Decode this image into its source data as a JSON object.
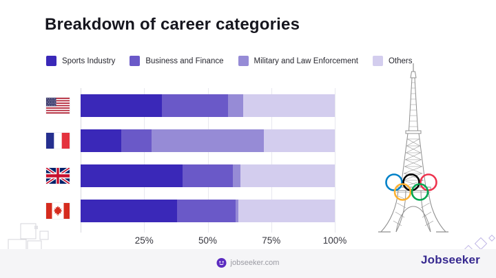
{
  "title": "Breakdown of career categories",
  "legend": [
    {
      "label": "Sports Industry",
      "color": "#3a28b8"
    },
    {
      "label": "Business and Finance",
      "color": "#6a59c8"
    },
    {
      "label": "Military and Law Enforcement",
      "color": "#968bd6"
    },
    {
      "label": "Others",
      "color": "#d3cdee"
    }
  ],
  "chart_data": {
    "type": "bar",
    "orientation": "horizontal",
    "stacked": true,
    "categories": [
      "United States",
      "France",
      "United Kingdom",
      "Canada"
    ],
    "category_flags": [
      "us",
      "fr",
      "gb",
      "ca"
    ],
    "series": [
      {
        "name": "Sports Industry",
        "color": "#3a28b8",
        "values": [
          32,
          16,
          40,
          38
        ]
      },
      {
        "name": "Business and Finance",
        "color": "#6a59c8",
        "values": [
          26,
          12,
          20,
          23
        ]
      },
      {
        "name": "Military and Law Enforcement",
        "color": "#968bd6",
        "values": [
          6,
          44,
          3,
          1
        ]
      },
      {
        "name": "Others",
        "color": "#d3cdee",
        "values": [
          36,
          28,
          37,
          38
        ]
      }
    ],
    "x_ticks": [
      "25%",
      "50%",
      "75%",
      "100%"
    ],
    "xlim": [
      0,
      100
    ],
    "grid": true,
    "legend_position": "top",
    "unit": "%"
  },
  "illustration": {
    "name": "eiffel-tower-with-olympic-rings",
    "ring_colors": [
      "#0081C8",
      "#000000",
      "#EE334E",
      "#FCB131",
      "#00A651"
    ]
  },
  "footer": {
    "site": "jobseeker.com",
    "brand": "Jobseeker",
    "accent": "#5b2bc0"
  }
}
